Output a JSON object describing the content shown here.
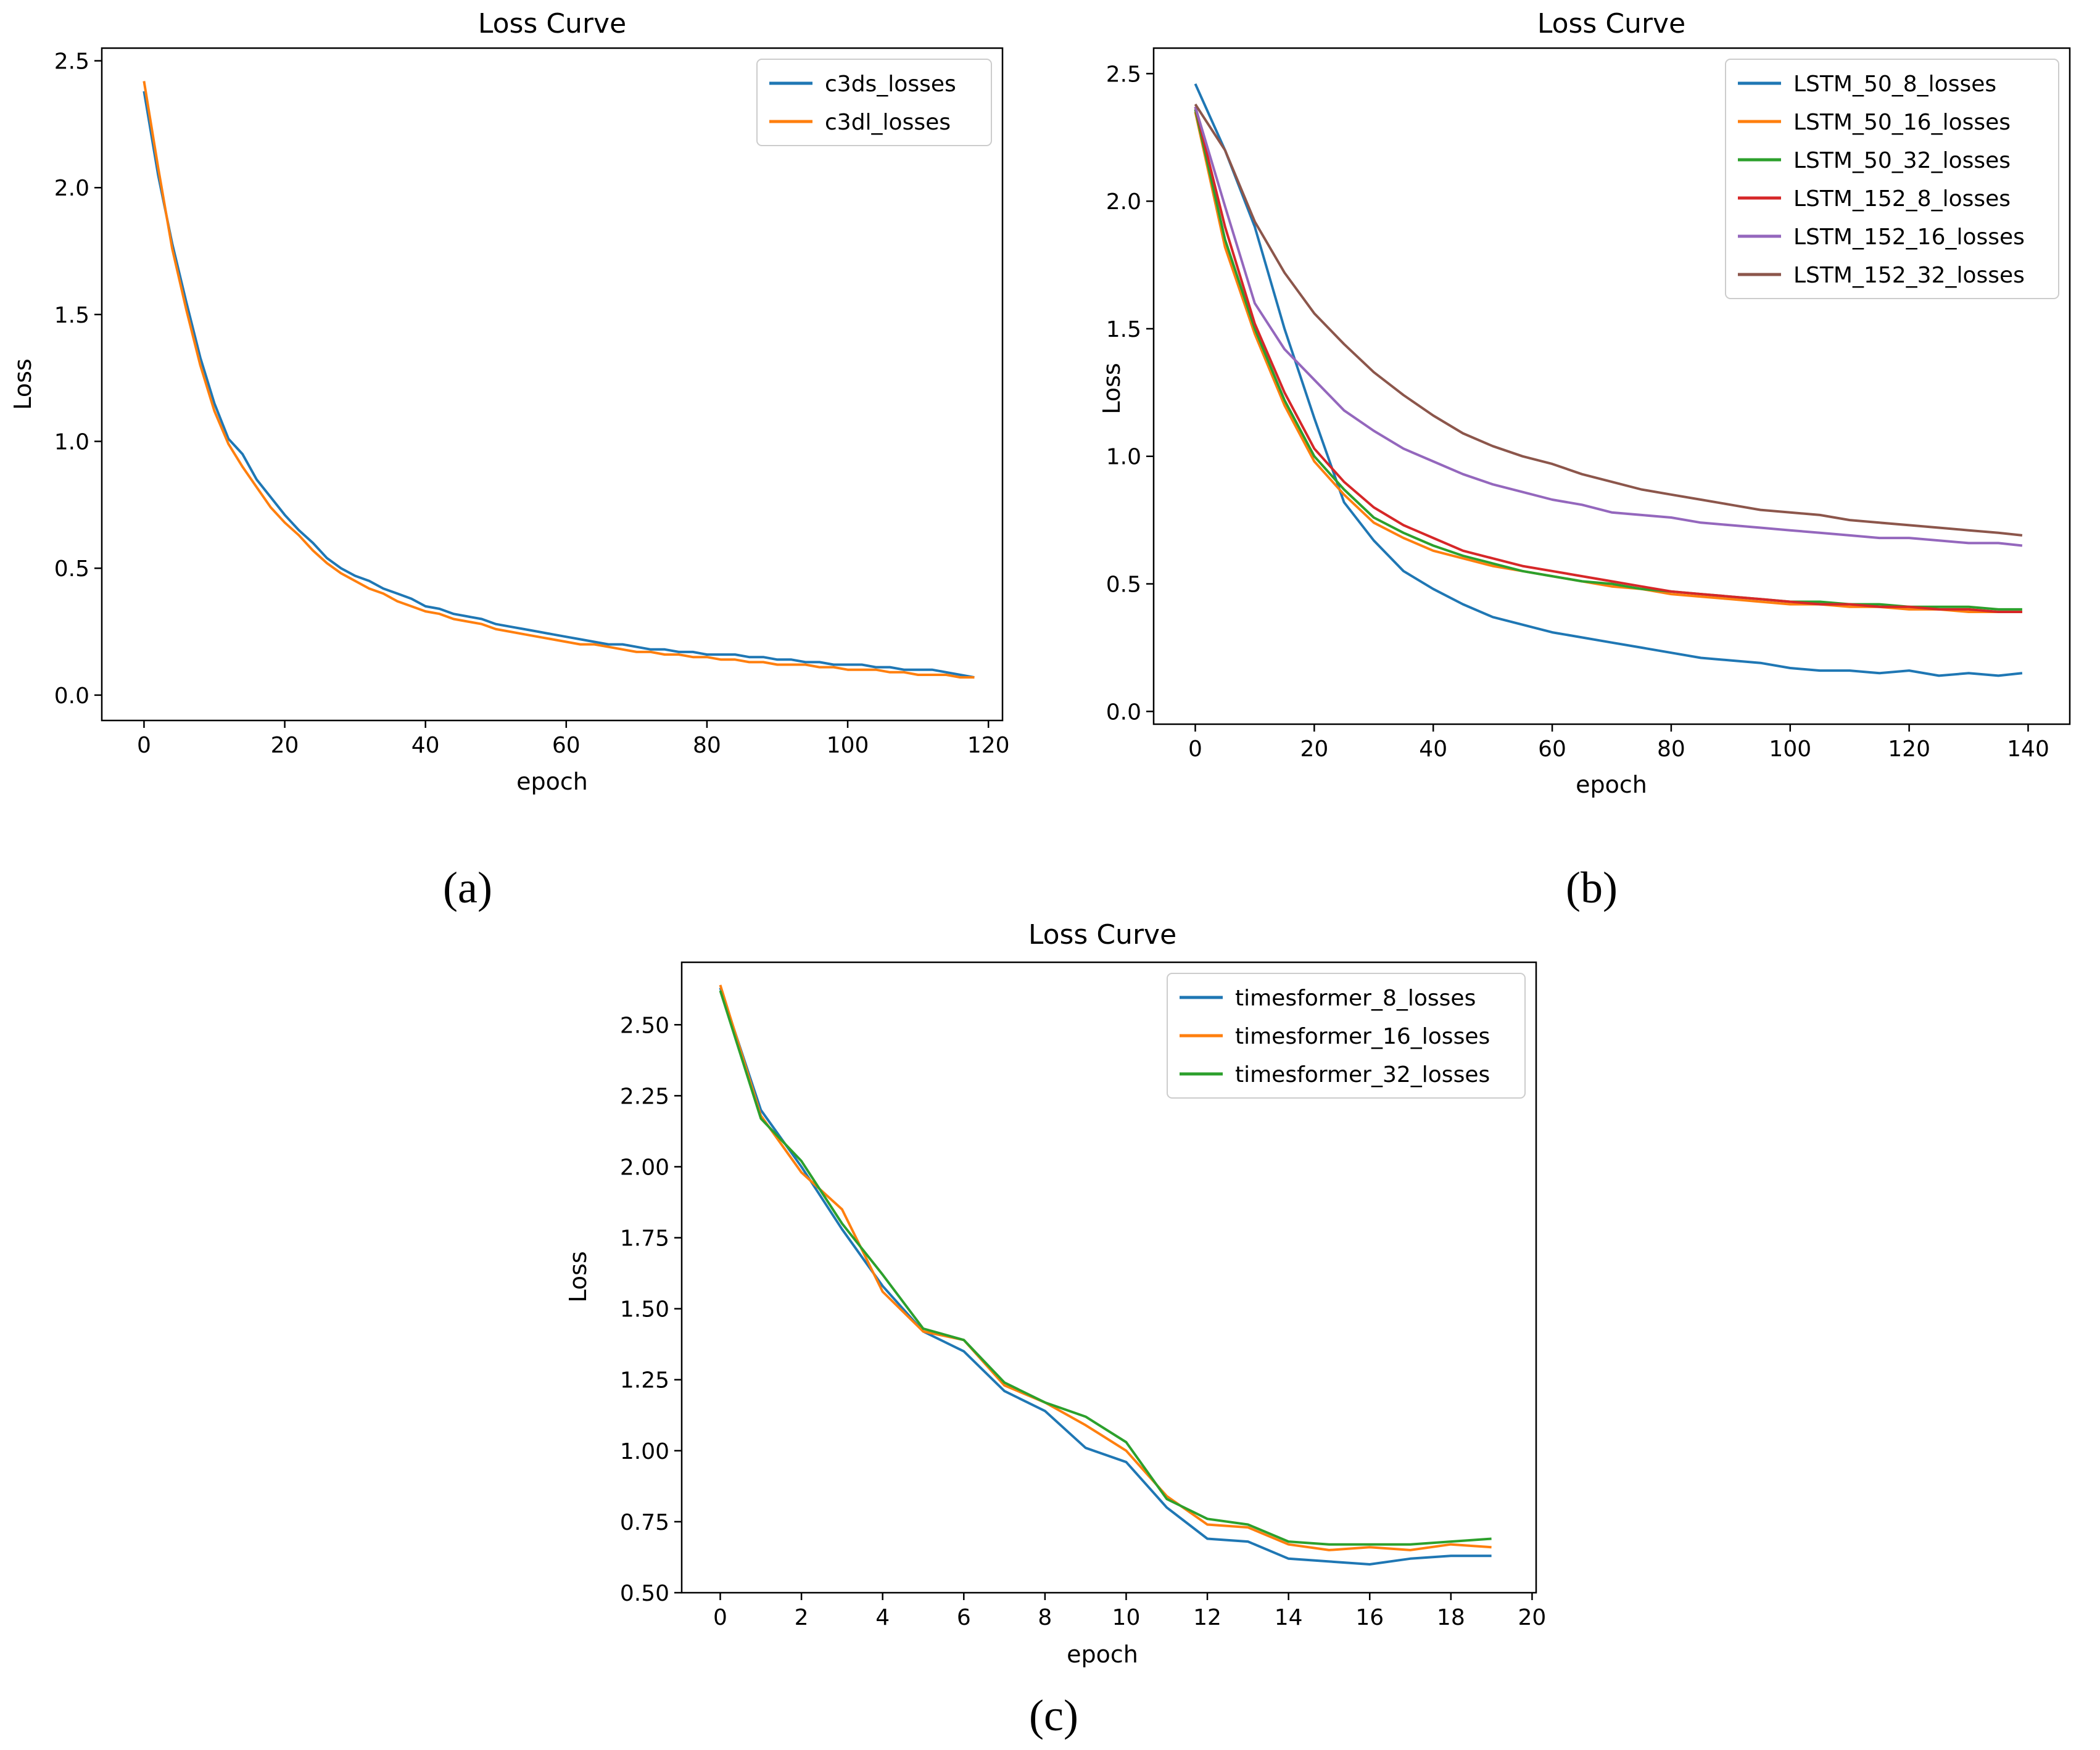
{
  "chart_data": [
    {
      "type": "line",
      "panel_label": "(a)",
      "title": "Loss Curve",
      "xlabel": "epoch",
      "ylabel": "Loss",
      "xlim": [
        -6,
        122
      ],
      "ylim": [
        -0.1,
        2.55
      ],
      "xticks": [
        0,
        20,
        40,
        60,
        80,
        100,
        120
      ],
      "xtick_labels": [
        "0",
        "20",
        "40",
        "60",
        "80",
        "100",
        "120"
      ],
      "yticks": [
        0.0,
        0.5,
        1.0,
        1.5,
        2.0,
        2.5
      ],
      "ytick_labels": [
        "0.0",
        "0.5",
        "1.0",
        "1.5",
        "2.0",
        "2.5"
      ],
      "legend_position": "top-right",
      "series": [
        {
          "name": "c3ds_losses",
          "color": "#1f77b4",
          "x": [
            0,
            2,
            4,
            6,
            8,
            10,
            12,
            14,
            16,
            18,
            20,
            22,
            24,
            26,
            28,
            30,
            32,
            34,
            36,
            38,
            40,
            42,
            44,
            46,
            48,
            50,
            52,
            54,
            56,
            58,
            60,
            62,
            64,
            66,
            68,
            70,
            72,
            74,
            76,
            78,
            80,
            82,
            84,
            86,
            88,
            90,
            92,
            94,
            96,
            98,
            100,
            102,
            104,
            106,
            108,
            110,
            112,
            114,
            116,
            118
          ],
          "y": [
            2.38,
            2.05,
            1.78,
            1.55,
            1.33,
            1.15,
            1.01,
            0.95,
            0.85,
            0.78,
            0.71,
            0.65,
            0.6,
            0.54,
            0.5,
            0.47,
            0.45,
            0.42,
            0.4,
            0.38,
            0.35,
            0.34,
            0.32,
            0.31,
            0.3,
            0.28,
            0.27,
            0.26,
            0.25,
            0.24,
            0.23,
            0.22,
            0.21,
            0.2,
            0.2,
            0.19,
            0.18,
            0.18,
            0.17,
            0.17,
            0.16,
            0.16,
            0.16,
            0.15,
            0.15,
            0.14,
            0.14,
            0.13,
            0.13,
            0.12,
            0.12,
            0.12,
            0.11,
            0.11,
            0.1,
            0.1,
            0.1,
            0.09,
            0.08,
            0.07
          ]
        },
        {
          "name": "c3dl_losses",
          "color": "#ff7f0e",
          "x": [
            0,
            2,
            4,
            6,
            8,
            10,
            12,
            14,
            16,
            18,
            20,
            22,
            24,
            26,
            28,
            30,
            32,
            34,
            36,
            38,
            40,
            42,
            44,
            46,
            48,
            50,
            52,
            54,
            56,
            58,
            60,
            62,
            64,
            66,
            68,
            70,
            72,
            74,
            76,
            78,
            80,
            82,
            84,
            86,
            88,
            90,
            92,
            94,
            96,
            98,
            100,
            102,
            104,
            106,
            108,
            110,
            112,
            114,
            116,
            118
          ],
          "y": [
            2.42,
            2.08,
            1.76,
            1.52,
            1.3,
            1.12,
            0.99,
            0.9,
            0.82,
            0.74,
            0.68,
            0.63,
            0.57,
            0.52,
            0.48,
            0.45,
            0.42,
            0.4,
            0.37,
            0.35,
            0.33,
            0.32,
            0.3,
            0.29,
            0.28,
            0.26,
            0.25,
            0.24,
            0.23,
            0.22,
            0.21,
            0.2,
            0.2,
            0.19,
            0.18,
            0.17,
            0.17,
            0.16,
            0.16,
            0.15,
            0.15,
            0.14,
            0.14,
            0.13,
            0.13,
            0.12,
            0.12,
            0.12,
            0.11,
            0.11,
            0.1,
            0.1,
            0.1,
            0.09,
            0.09,
            0.08,
            0.08,
            0.08,
            0.07,
            0.07
          ]
        }
      ]
    },
    {
      "type": "line",
      "panel_label": "(b)",
      "title": "Loss Curve",
      "xlabel": "epoch",
      "ylabel": "Loss",
      "xlim": [
        -7,
        147
      ],
      "ylim": [
        -0.05,
        2.6
      ],
      "xticks": [
        0,
        20,
        40,
        60,
        80,
        100,
        120,
        140
      ],
      "xtick_labels": [
        "0",
        "20",
        "40",
        "60",
        "80",
        "100",
        "120",
        "140"
      ],
      "yticks": [
        0.0,
        0.5,
        1.0,
        1.5,
        2.0,
        2.5
      ],
      "ytick_labels": [
        "0.0",
        "0.5",
        "1.0",
        "1.5",
        "2.0",
        "2.5"
      ],
      "legend_position": "top-right",
      "series": [
        {
          "name": "LSTM_50_8_losses",
          "color": "#1f77b4",
          "x": [
            0,
            5,
            10,
            15,
            20,
            25,
            30,
            35,
            40,
            45,
            50,
            55,
            60,
            65,
            70,
            75,
            80,
            85,
            90,
            95,
            100,
            105,
            110,
            115,
            120,
            125,
            130,
            135,
            139
          ],
          "y": [
            2.46,
            2.2,
            1.9,
            1.5,
            1.15,
            0.82,
            0.67,
            0.55,
            0.48,
            0.42,
            0.37,
            0.34,
            0.31,
            0.29,
            0.27,
            0.25,
            0.23,
            0.21,
            0.2,
            0.19,
            0.17,
            0.16,
            0.16,
            0.15,
            0.16,
            0.14,
            0.15,
            0.14,
            0.15
          ]
        },
        {
          "name": "LSTM_50_16_losses",
          "color": "#ff7f0e",
          "x": [
            0,
            5,
            10,
            15,
            20,
            25,
            30,
            35,
            40,
            45,
            50,
            55,
            60,
            65,
            70,
            75,
            80,
            85,
            90,
            95,
            100,
            105,
            110,
            115,
            120,
            125,
            130,
            135,
            139
          ],
          "y": [
            2.35,
            1.82,
            1.48,
            1.2,
            0.98,
            0.85,
            0.74,
            0.68,
            0.63,
            0.6,
            0.57,
            0.55,
            0.53,
            0.51,
            0.49,
            0.48,
            0.46,
            0.45,
            0.44,
            0.43,
            0.42,
            0.42,
            0.41,
            0.41,
            0.4,
            0.4,
            0.39,
            0.39,
            0.39
          ]
        },
        {
          "name": "LSTM_50_32_losses",
          "color": "#2ca02c",
          "x": [
            0,
            5,
            10,
            15,
            20,
            25,
            30,
            35,
            40,
            45,
            50,
            55,
            60,
            65,
            70,
            75,
            80,
            85,
            90,
            95,
            100,
            105,
            110,
            115,
            120,
            125,
            130,
            135,
            139
          ],
          "y": [
            2.36,
            1.85,
            1.5,
            1.22,
            1.0,
            0.87,
            0.76,
            0.7,
            0.65,
            0.61,
            0.58,
            0.55,
            0.53,
            0.51,
            0.5,
            0.48,
            0.47,
            0.46,
            0.45,
            0.44,
            0.43,
            0.43,
            0.42,
            0.42,
            0.41,
            0.41,
            0.41,
            0.4,
            0.4
          ]
        },
        {
          "name": "LSTM_152_8_losses",
          "color": "#d62728",
          "x": [
            0,
            5,
            10,
            15,
            20,
            25,
            30,
            35,
            40,
            45,
            50,
            55,
            60,
            65,
            70,
            75,
            80,
            85,
            90,
            95,
            100,
            105,
            110,
            115,
            120,
            125,
            130,
            135,
            139
          ],
          "y": [
            2.37,
            1.9,
            1.52,
            1.25,
            1.03,
            0.9,
            0.8,
            0.73,
            0.68,
            0.63,
            0.6,
            0.57,
            0.55,
            0.53,
            0.51,
            0.49,
            0.47,
            0.46,
            0.45,
            0.44,
            0.43,
            0.42,
            0.42,
            0.41,
            0.41,
            0.4,
            0.4,
            0.39,
            0.39
          ]
        },
        {
          "name": "LSTM_152_16_losses",
          "color": "#9467bd",
          "x": [
            0,
            5,
            10,
            15,
            20,
            25,
            30,
            35,
            40,
            45,
            50,
            55,
            60,
            65,
            70,
            75,
            80,
            85,
            90,
            95,
            100,
            105,
            110,
            115,
            120,
            125,
            130,
            135,
            139
          ],
          "y": [
            2.37,
            1.98,
            1.6,
            1.42,
            1.3,
            1.18,
            1.1,
            1.03,
            0.98,
            0.93,
            0.89,
            0.86,
            0.83,
            0.81,
            0.78,
            0.77,
            0.76,
            0.74,
            0.73,
            0.72,
            0.71,
            0.7,
            0.69,
            0.68,
            0.68,
            0.67,
            0.66,
            0.66,
            0.65
          ]
        },
        {
          "name": "LSTM_152_32_losses",
          "color": "#8c564b",
          "x": [
            0,
            5,
            10,
            15,
            20,
            25,
            30,
            35,
            40,
            45,
            50,
            55,
            60,
            65,
            70,
            75,
            80,
            85,
            90,
            95,
            100,
            105,
            110,
            115,
            120,
            125,
            130,
            135,
            139
          ],
          "y": [
            2.38,
            2.2,
            1.92,
            1.72,
            1.56,
            1.44,
            1.33,
            1.24,
            1.16,
            1.09,
            1.04,
            1.0,
            0.97,
            0.93,
            0.9,
            0.87,
            0.85,
            0.83,
            0.81,
            0.79,
            0.78,
            0.77,
            0.75,
            0.74,
            0.73,
            0.72,
            0.71,
            0.7,
            0.69
          ]
        }
      ]
    },
    {
      "type": "line",
      "panel_label": "(c)",
      "title": "Loss Curve",
      "xlabel": "epoch",
      "ylabel": "Loss",
      "xlim": [
        -0.95,
        20.1
      ],
      "ylim": [
        0.5,
        2.72
      ],
      "xticks": [
        0,
        2,
        4,
        6,
        8,
        10,
        12,
        14,
        16,
        18,
        20
      ],
      "xtick_labels": [
        "0",
        "2",
        "4",
        "6",
        "8",
        "10",
        "12",
        "14",
        "16",
        "18",
        "20"
      ],
      "yticks": [
        0.5,
        0.75,
        1.0,
        1.25,
        1.5,
        1.75,
        2.0,
        2.25,
        2.5
      ],
      "ytick_labels": [
        "0.50",
        "0.75",
        "1.00",
        "1.25",
        "1.50",
        "1.75",
        "2.00",
        "2.25",
        "2.50"
      ],
      "legend_position": "top-right",
      "series": [
        {
          "name": "timesformer_8_losses",
          "color": "#1f77b4",
          "x": [
            0,
            1,
            2,
            3,
            4,
            5,
            6,
            7,
            8,
            9,
            10,
            11,
            12,
            13,
            14,
            15,
            16,
            17,
            18,
            19
          ],
          "y": [
            2.63,
            2.2,
            2.0,
            1.78,
            1.58,
            1.42,
            1.35,
            1.21,
            1.14,
            1.01,
            0.96,
            0.8,
            0.69,
            0.68,
            0.62,
            0.61,
            0.6,
            0.62,
            0.63,
            0.63
          ]
        },
        {
          "name": "timesformer_16_losses",
          "color": "#ff7f0e",
          "x": [
            0,
            1,
            2,
            3,
            4,
            5,
            6,
            7,
            8,
            9,
            10,
            11,
            12,
            13,
            14,
            15,
            16,
            17,
            18,
            19
          ],
          "y": [
            2.64,
            2.18,
            1.98,
            1.85,
            1.56,
            1.42,
            1.39,
            1.23,
            1.17,
            1.09,
            1.0,
            0.84,
            0.74,
            0.73,
            0.67,
            0.65,
            0.66,
            0.65,
            0.67,
            0.66
          ]
        },
        {
          "name": "timesformer_32_losses",
          "color": "#2ca02c",
          "x": [
            0,
            1,
            2,
            3,
            4,
            5,
            6,
            7,
            8,
            9,
            10,
            11,
            12,
            13,
            14,
            15,
            16,
            17,
            18,
            19
          ],
          "y": [
            2.62,
            2.17,
            2.02,
            1.8,
            1.62,
            1.43,
            1.39,
            1.24,
            1.17,
            1.12,
            1.03,
            0.83,
            0.76,
            0.74,
            0.68,
            0.67,
            0.67,
            0.67,
            0.68,
            0.69
          ]
        }
      ]
    }
  ]
}
